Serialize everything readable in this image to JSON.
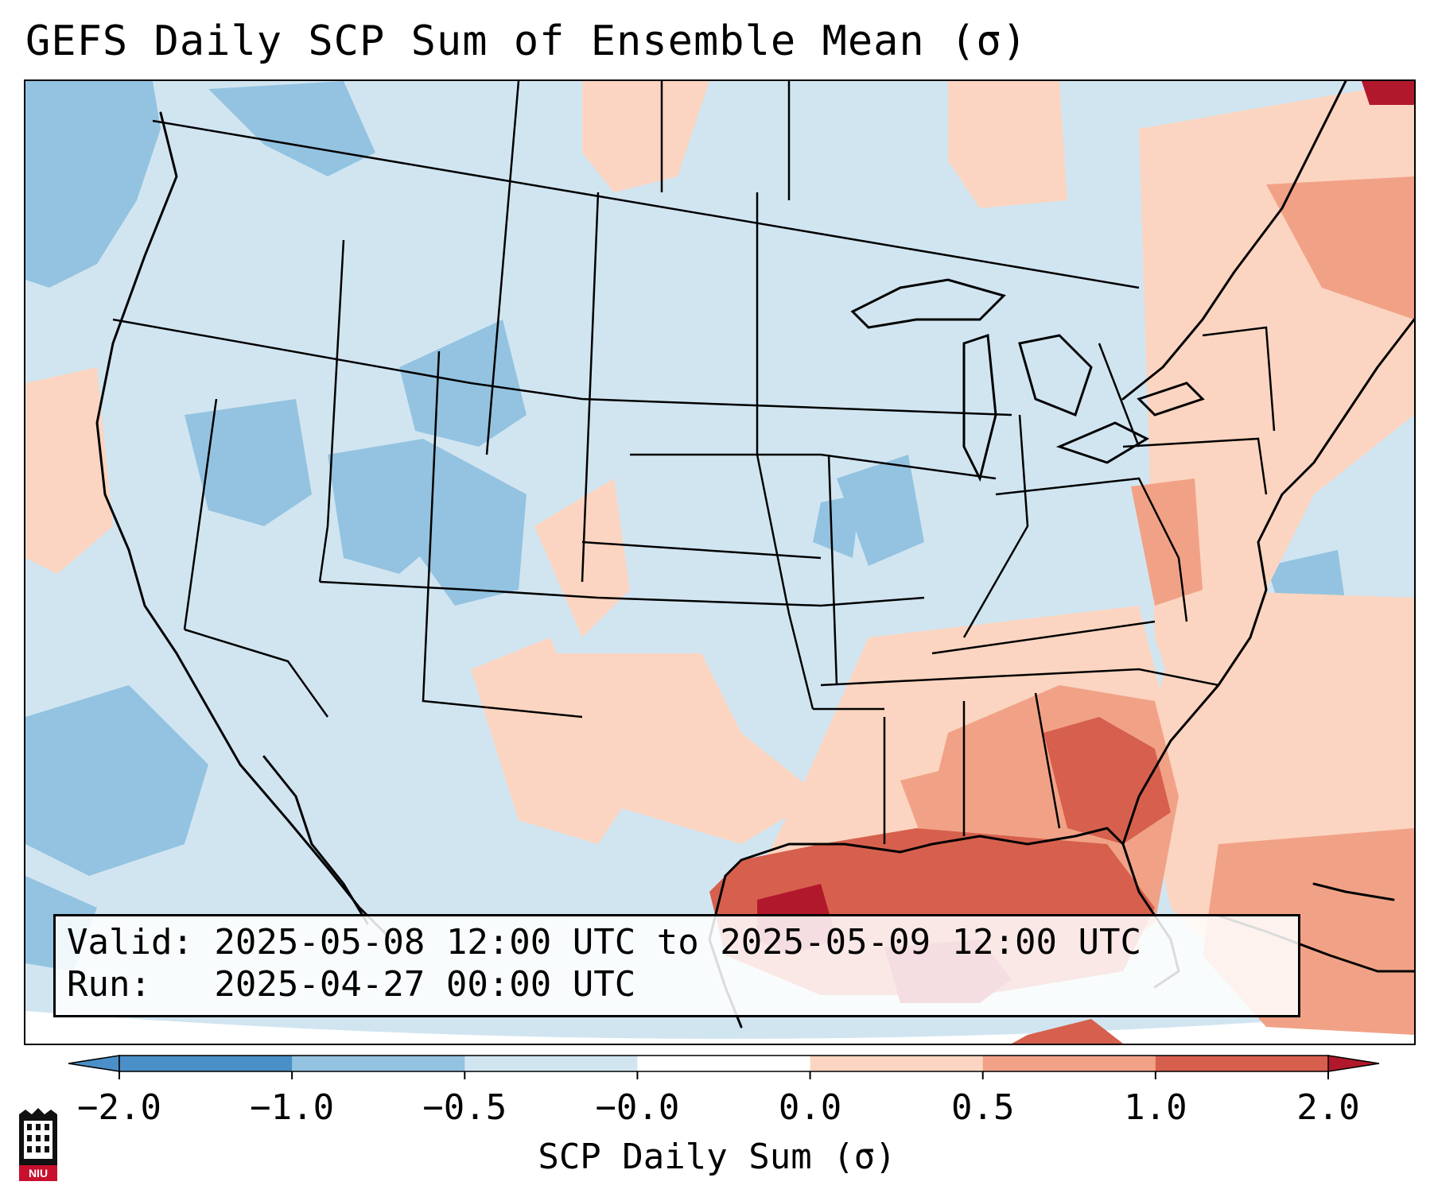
{
  "title": "GEFS Daily SCP Sum of Ensemble Mean (σ)",
  "valid_line": "Valid: 2025-05-08 12:00 UTC to 2025-05-09 12:00 UTC",
  "run_line": "Run:   2025-04-27 00:00 UTC",
  "colorbar": {
    "label": "SCP Daily Sum (σ)",
    "ticks": [
      "−2.0",
      "−1.0",
      "−0.5",
      "−0.0",
      "0.0",
      "0.5",
      "1.0",
      "2.0"
    ],
    "colors": [
      "#4a8fc7",
      "#93c3e0",
      "#d1e5f1",
      "#ffffff",
      "#fbd5c1",
      "#f1a286",
      "#d6604d",
      "#b2182b"
    ],
    "extend": "both"
  },
  "logo_text": "NIU",
  "map": {
    "region": "CONUS",
    "projection": "Lambert Conformal",
    "field_colors": {
      "background": "#d1e5f1",
      "strong_negative": "#93c3e0",
      "weak_positive": "#fbd5c1",
      "moderate_positive": "#f1a286",
      "high_positive": "#d6604d",
      "max_positive": "#b2182b"
    }
  }
}
